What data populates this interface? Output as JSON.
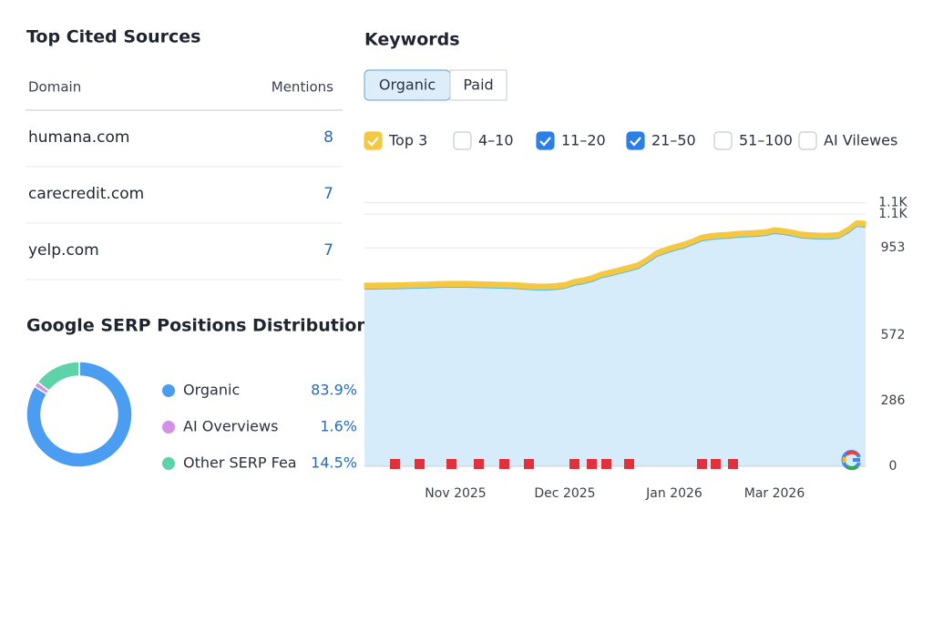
{
  "top_cited_sources": {
    "title": "Top Cited Sources",
    "columns": [
      "Domain",
      "Mentions"
    ],
    "rows": [
      [
        "humana.com",
        8
      ],
      [
        "carecredit.com",
        7
      ],
      [
        "yelp.com",
        7
      ]
    ]
  },
  "serp_distribution": {
    "title": "Google SERP Positions Distribution",
    "chart_data": {
      "type": "pie",
      "donut": true,
      "categories": [
        "Organic",
        "AI Overviews",
        "Other SERP Fea"
      ],
      "values": [
        83.9,
        1.6,
        14.5
      ],
      "value_labels": [
        "83.9%",
        "1.6%",
        "14.5%"
      ],
      "colors": [
        "#4a9df0",
        "#d48fe8",
        "#5ed3a8"
      ]
    }
  },
  "keywords": {
    "title": "Keywords",
    "tabs": [
      "Organic",
      "Paid"
    ],
    "active_tab": 0,
    "filters": [
      {
        "label": "Top 3",
        "checked": true,
        "color": "#f5c842"
      },
      {
        "label": "4–10",
        "checked": false
      },
      {
        "label": "11–20",
        "checked": true,
        "color": "#2d7fe8"
      },
      {
        "label": "21–50",
        "checked": true,
        "color": "#2d7fe8"
      },
      {
        "label": "51–100",
        "checked": false
      },
      {
        "label": "AI Vilewes",
        "checked": false
      }
    ],
    "chart_data": {
      "type": "area",
      "stacked": true,
      "categories": [
        null,
        null,
        null,
        null,
        null,
        null,
        null,
        null,
        null,
        null,
        "Nov 2025",
        null,
        null,
        null,
        null,
        null,
        null,
        null,
        null,
        null,
        null,
        null,
        "Dec 2025",
        null,
        null,
        null,
        null,
        null,
        null,
        null,
        null,
        null,
        null,
        null,
        "Jan 2026",
        null,
        null,
        null,
        null,
        null,
        null,
        null,
        null,
        null,
        null,
        "Mar 2026",
        null,
        null,
        null,
        null,
        null,
        null,
        null,
        null,
        null,
        null
      ],
      "series": [
        {
          "color": "#5bb8e8",
          "values": [
            777,
            777,
            778,
            778,
            779,
            780,
            781,
            782,
            784,
            785,
            785,
            785,
            784,
            783,
            782,
            781,
            780,
            778,
            775,
            773,
            773,
            775,
            780,
            793,
            800,
            810,
            826,
            835,
            845,
            855,
            866,
            890,
            918,
            932,
            945,
            955,
            970,
            987,
            993,
            997,
            999,
            1003,
            1005,
            1007,
            1010,
            1019,
            1015,
            1008,
            1000,
            997,
            995,
            995,
            998,
            1020,
            1050,
            1047
          ]
        },
        {
          "color": "#f5c842",
          "values": [
            22,
            22,
            22,
            22,
            22,
            22,
            22,
            22,
            22,
            22,
            22,
            22,
            22,
            22,
            22,
            22,
            22,
            22,
            22,
            22,
            22,
            22,
            22,
            22,
            22,
            22,
            22,
            22,
            22,
            22,
            22,
            22,
            22,
            22,
            22,
            22,
            22,
            22,
            22,
            22,
            22,
            22,
            22,
            22,
            22,
            22,
            22,
            22,
            22,
            22,
            22,
            22,
            22,
            22,
            22,
            22
          ]
        }
      ],
      "ylim": [
        0,
        1200
      ],
      "yticks": [
        0,
        286,
        572,
        953,
        {
          "value": 1100,
          "label": "1.1K"
        },
        {
          "value": 1150,
          "label": "1.1K"
        }
      ],
      "grid": true
    }
  }
}
